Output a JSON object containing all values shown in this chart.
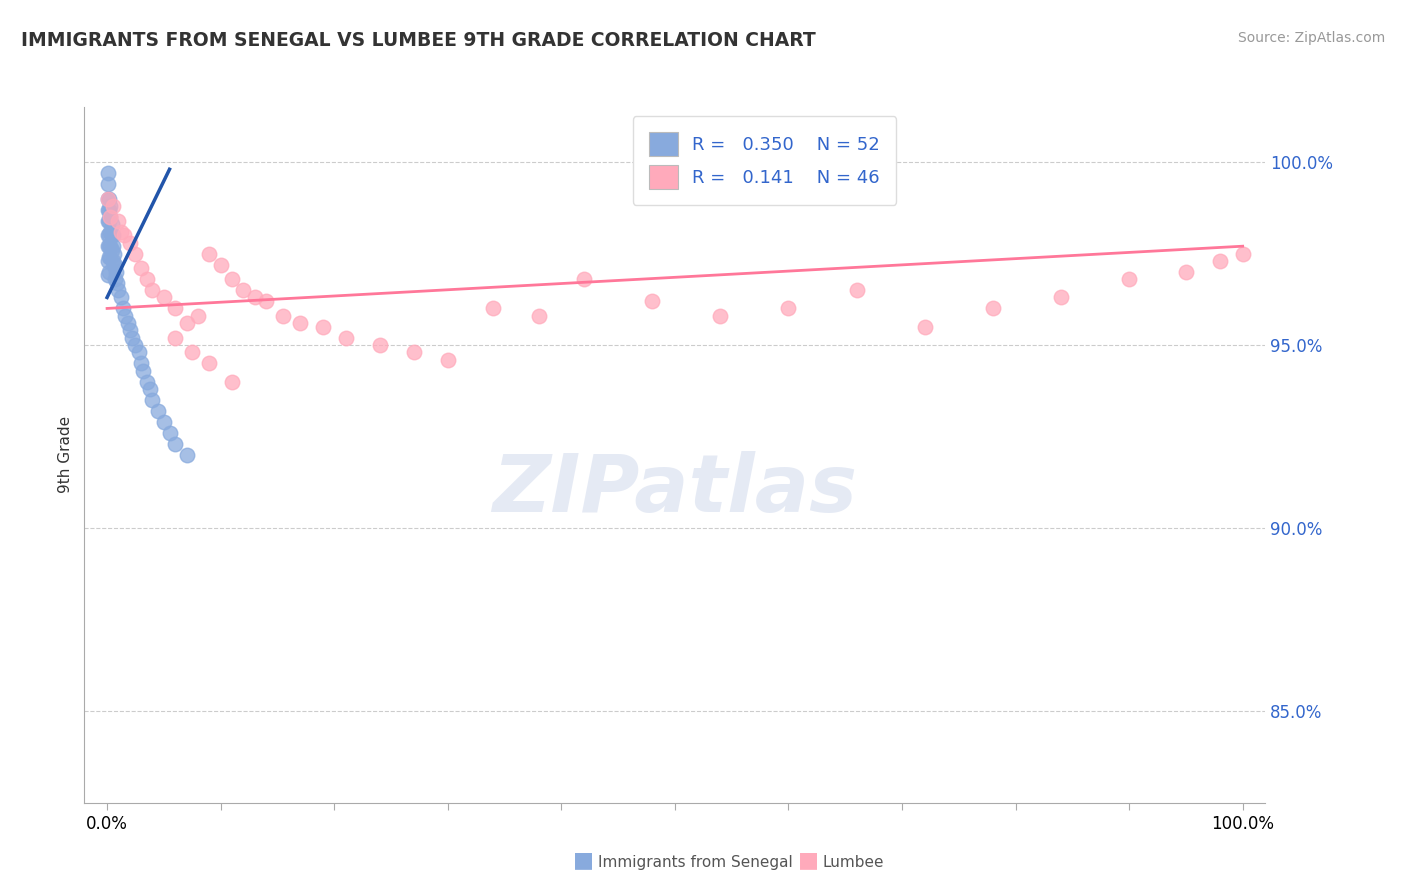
{
  "title": "IMMIGRANTS FROM SENEGAL VS LUMBEE 9TH GRADE CORRELATION CHART",
  "source_text": "Source: ZipAtlas.com",
  "ylabel": "9th Grade",
  "xlim": [
    -0.02,
    1.02
  ],
  "ylim": [
    0.825,
    1.015
  ],
  "ytick_values": [
    0.85,
    0.9,
    0.95,
    1.0
  ],
  "ytick_labels": [
    "85.0%",
    "90.0%",
    "95.0%",
    "100.0%"
  ],
  "xtick_values": [
    0.0,
    0.1,
    0.2,
    0.3,
    0.4,
    0.5,
    0.6,
    0.7,
    0.8,
    0.9,
    1.0
  ],
  "legend_r1": "R = ",
  "legend_v1": "0.350",
  "legend_n1": "N = ",
  "legend_nv1": "52",
  "legend_r2": "R = ",
  "legend_v2": "0.141",
  "legend_n2": "N = ",
  "legend_nv2": "46",
  "color_blue": "#88AADD",
  "color_pink": "#FFAABB",
  "color_line_blue": "#2255AA",
  "color_line_pink": "#FF7799",
  "watermark_text": "ZIPatlas",
  "watermark_color": "#AABBDD",
  "blue_x": [
    0.001,
    0.001,
    0.001,
    0.001,
    0.001,
    0.001,
    0.001,
    0.001,
    0.001,
    0.002,
    0.002,
    0.002,
    0.002,
    0.002,
    0.002,
    0.002,
    0.003,
    0.003,
    0.003,
    0.003,
    0.003,
    0.004,
    0.004,
    0.004,
    0.005,
    0.005,
    0.005,
    0.006,
    0.006,
    0.007,
    0.007,
    0.008,
    0.009,
    0.01,
    0.012,
    0.014,
    0.016,
    0.018,
    0.02,
    0.022,
    0.025,
    0.028,
    0.03,
    0.032,
    0.035,
    0.038,
    0.04,
    0.045,
    0.05,
    0.055,
    0.06,
    0.07
  ],
  "blue_y": [
    0.997,
    0.994,
    0.99,
    0.987,
    0.984,
    0.98,
    0.977,
    0.973,
    0.969,
    0.99,
    0.987,
    0.984,
    0.98,
    0.977,
    0.974,
    0.97,
    0.988,
    0.985,
    0.981,
    0.977,
    0.974,
    0.983,
    0.98,
    0.976,
    0.98,
    0.977,
    0.973,
    0.975,
    0.972,
    0.972,
    0.968,
    0.97,
    0.967,
    0.965,
    0.963,
    0.96,
    0.958,
    0.956,
    0.954,
    0.952,
    0.95,
    0.948,
    0.945,
    0.943,
    0.94,
    0.938,
    0.935,
    0.932,
    0.929,
    0.926,
    0.923,
    0.92
  ],
  "pink_x": [
    0.001,
    0.003,
    0.005,
    0.01,
    0.012,
    0.015,
    0.02,
    0.025,
    0.03,
    0.035,
    0.04,
    0.05,
    0.06,
    0.07,
    0.08,
    0.09,
    0.1,
    0.11,
    0.12,
    0.13,
    0.14,
    0.155,
    0.17,
    0.19,
    0.21,
    0.24,
    0.27,
    0.3,
    0.34,
    0.38,
    0.42,
    0.48,
    0.54,
    0.6,
    0.66,
    0.72,
    0.78,
    0.84,
    0.9,
    0.95,
    0.98,
    1.0,
    0.06,
    0.075,
    0.09,
    0.11
  ],
  "pink_y": [
    0.99,
    0.985,
    0.988,
    0.984,
    0.981,
    0.98,
    0.978,
    0.975,
    0.971,
    0.968,
    0.965,
    0.963,
    0.96,
    0.956,
    0.958,
    0.975,
    0.972,
    0.968,
    0.965,
    0.963,
    0.962,
    0.958,
    0.956,
    0.955,
    0.952,
    0.95,
    0.948,
    0.946,
    0.96,
    0.958,
    0.968,
    0.962,
    0.958,
    0.96,
    0.965,
    0.955,
    0.96,
    0.963,
    0.968,
    0.97,
    0.973,
    0.975,
    0.952,
    0.948,
    0.945,
    0.94
  ],
  "blue_trend_x": [
    0.0,
    0.055
  ],
  "blue_trend_y": [
    0.963,
    0.998
  ],
  "pink_trend_x": [
    0.0,
    1.0
  ],
  "pink_trend_y": [
    0.96,
    0.977
  ]
}
